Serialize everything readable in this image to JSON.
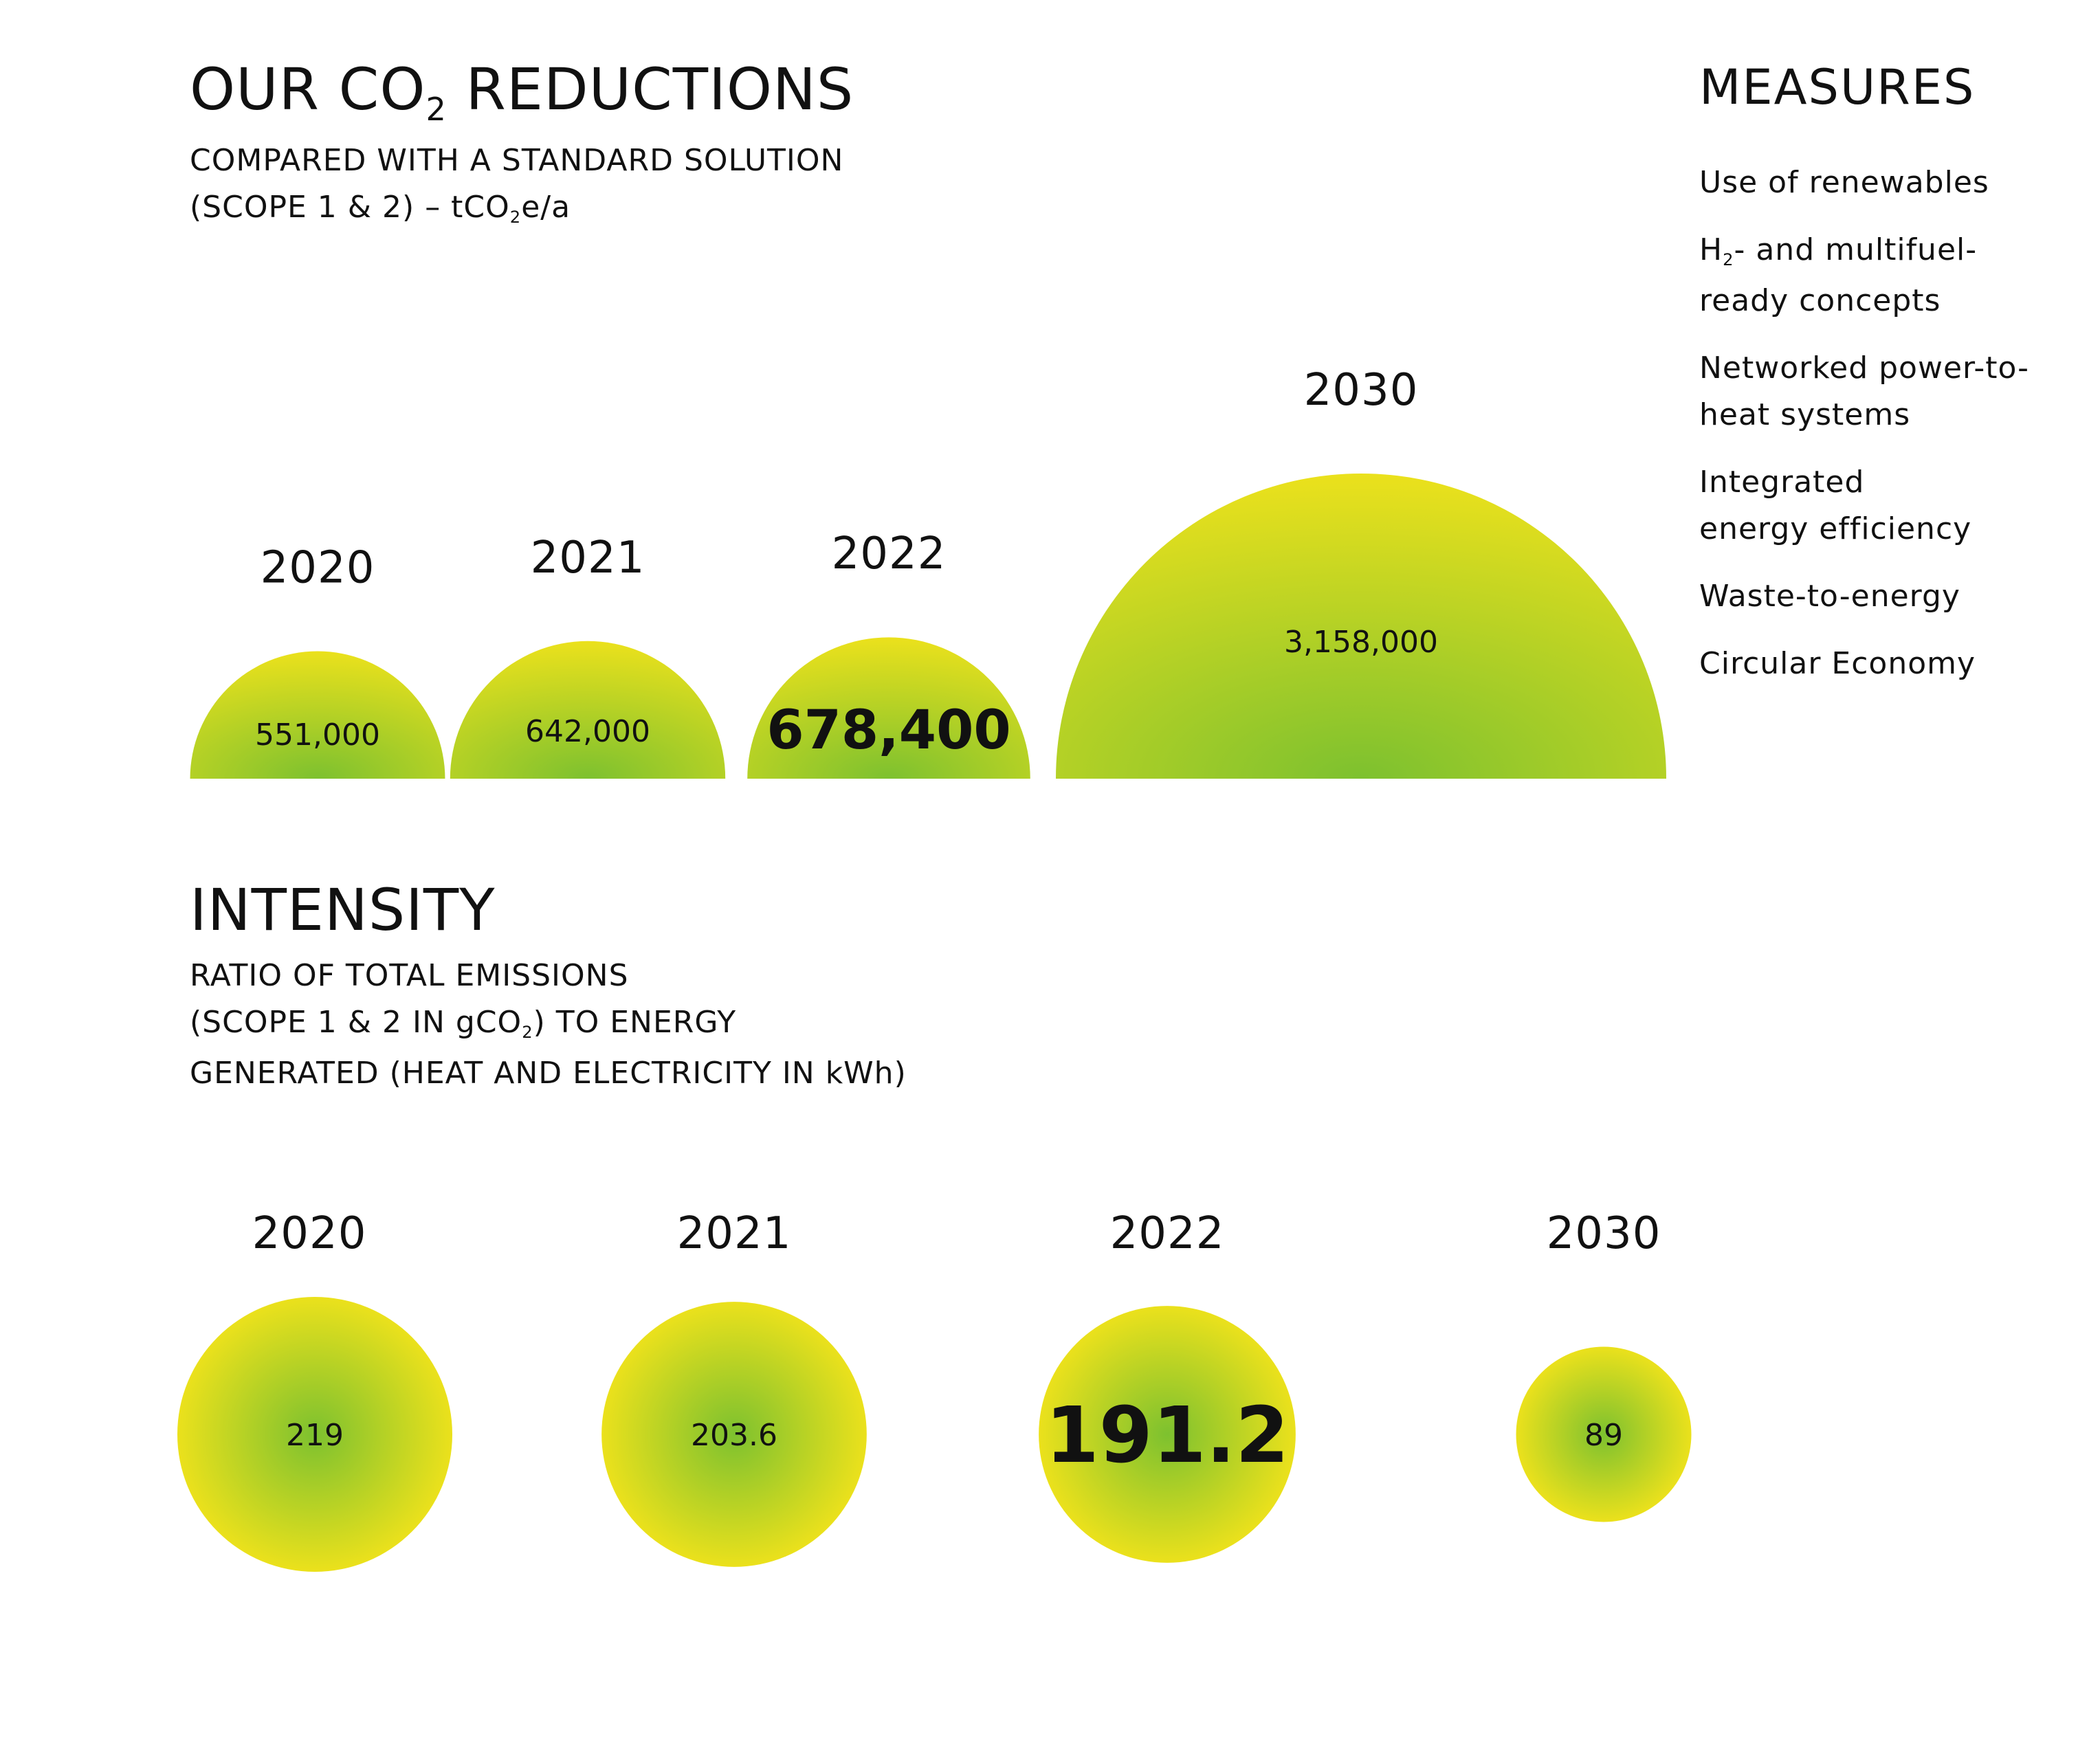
{
  "reductions": {
    "title_pre": "OUR CO",
    "title_sub": "2",
    "title_post": " REDUCTIONS",
    "subtitle_line1": "COMPARED WITH A STANDARD SOLUTION",
    "subtitle_line2_pre": "(SCOPE 1 & 2) – tCO",
    "subtitle_line2_sub": "2",
    "subtitle_line2_post": "e/a"
  },
  "intensity": {
    "title": "INTENSITY",
    "subtitle_line1": "RATIO OF TOTAL EMISSIONS",
    "subtitle_line2_pre": "(SCOPE 1 & 2 IN gCO",
    "subtitle_line2_sub": "2",
    "subtitle_line2_post": ") TO ENERGY",
    "subtitle_line3": "GENERATED (HEAT AND ELECTRICITY IN kWh)"
  },
  "measures": {
    "title": "MEASURES",
    "item1": "Use of renewables",
    "item2_pre": "H",
    "item2_sub": "2",
    "item2_post": "- and multifuel-",
    "item2_line2": "ready concepts",
    "item3_line1": "Networked power-to-",
    "item3_line2": "heat systems",
    "item4_line1": "Integrated",
    "item4_line2": "energy efficiency",
    "item5": "Waste-to-energy",
    "item6": "Circular Economy"
  },
  "colors": {
    "bubble_edge": "#ebe11c",
    "bubble_center": "#7dc12f"
  },
  "chart_data": [
    {
      "type": "bubble",
      "name": "reductions",
      "categories": [
        "2020",
        "2021",
        "2022",
        "2030"
      ],
      "values": [
        551000,
        642000,
        678400,
        3158000
      ],
      "labels": [
        "551,000",
        "642,000",
        "678,400",
        "3,158,000"
      ],
      "highlight": "2022"
    },
    {
      "type": "bubble",
      "name": "intensity",
      "categories": [
        "2020",
        "2021",
        "2022",
        "2030"
      ],
      "values": [
        219,
        203.6,
        191.2,
        89
      ],
      "labels": [
        "219",
        "203.6",
        "191.2",
        "89"
      ],
      "highlight": "2022"
    }
  ]
}
